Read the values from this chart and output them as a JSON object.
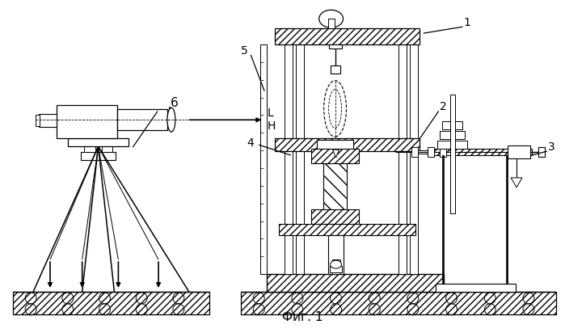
{
  "caption": "Фиг. 1",
  "bg": "#ffffff",
  "lc": "#000000",
  "fig_w": 6.99,
  "fig_h": 4.12,
  "dpi": 100
}
